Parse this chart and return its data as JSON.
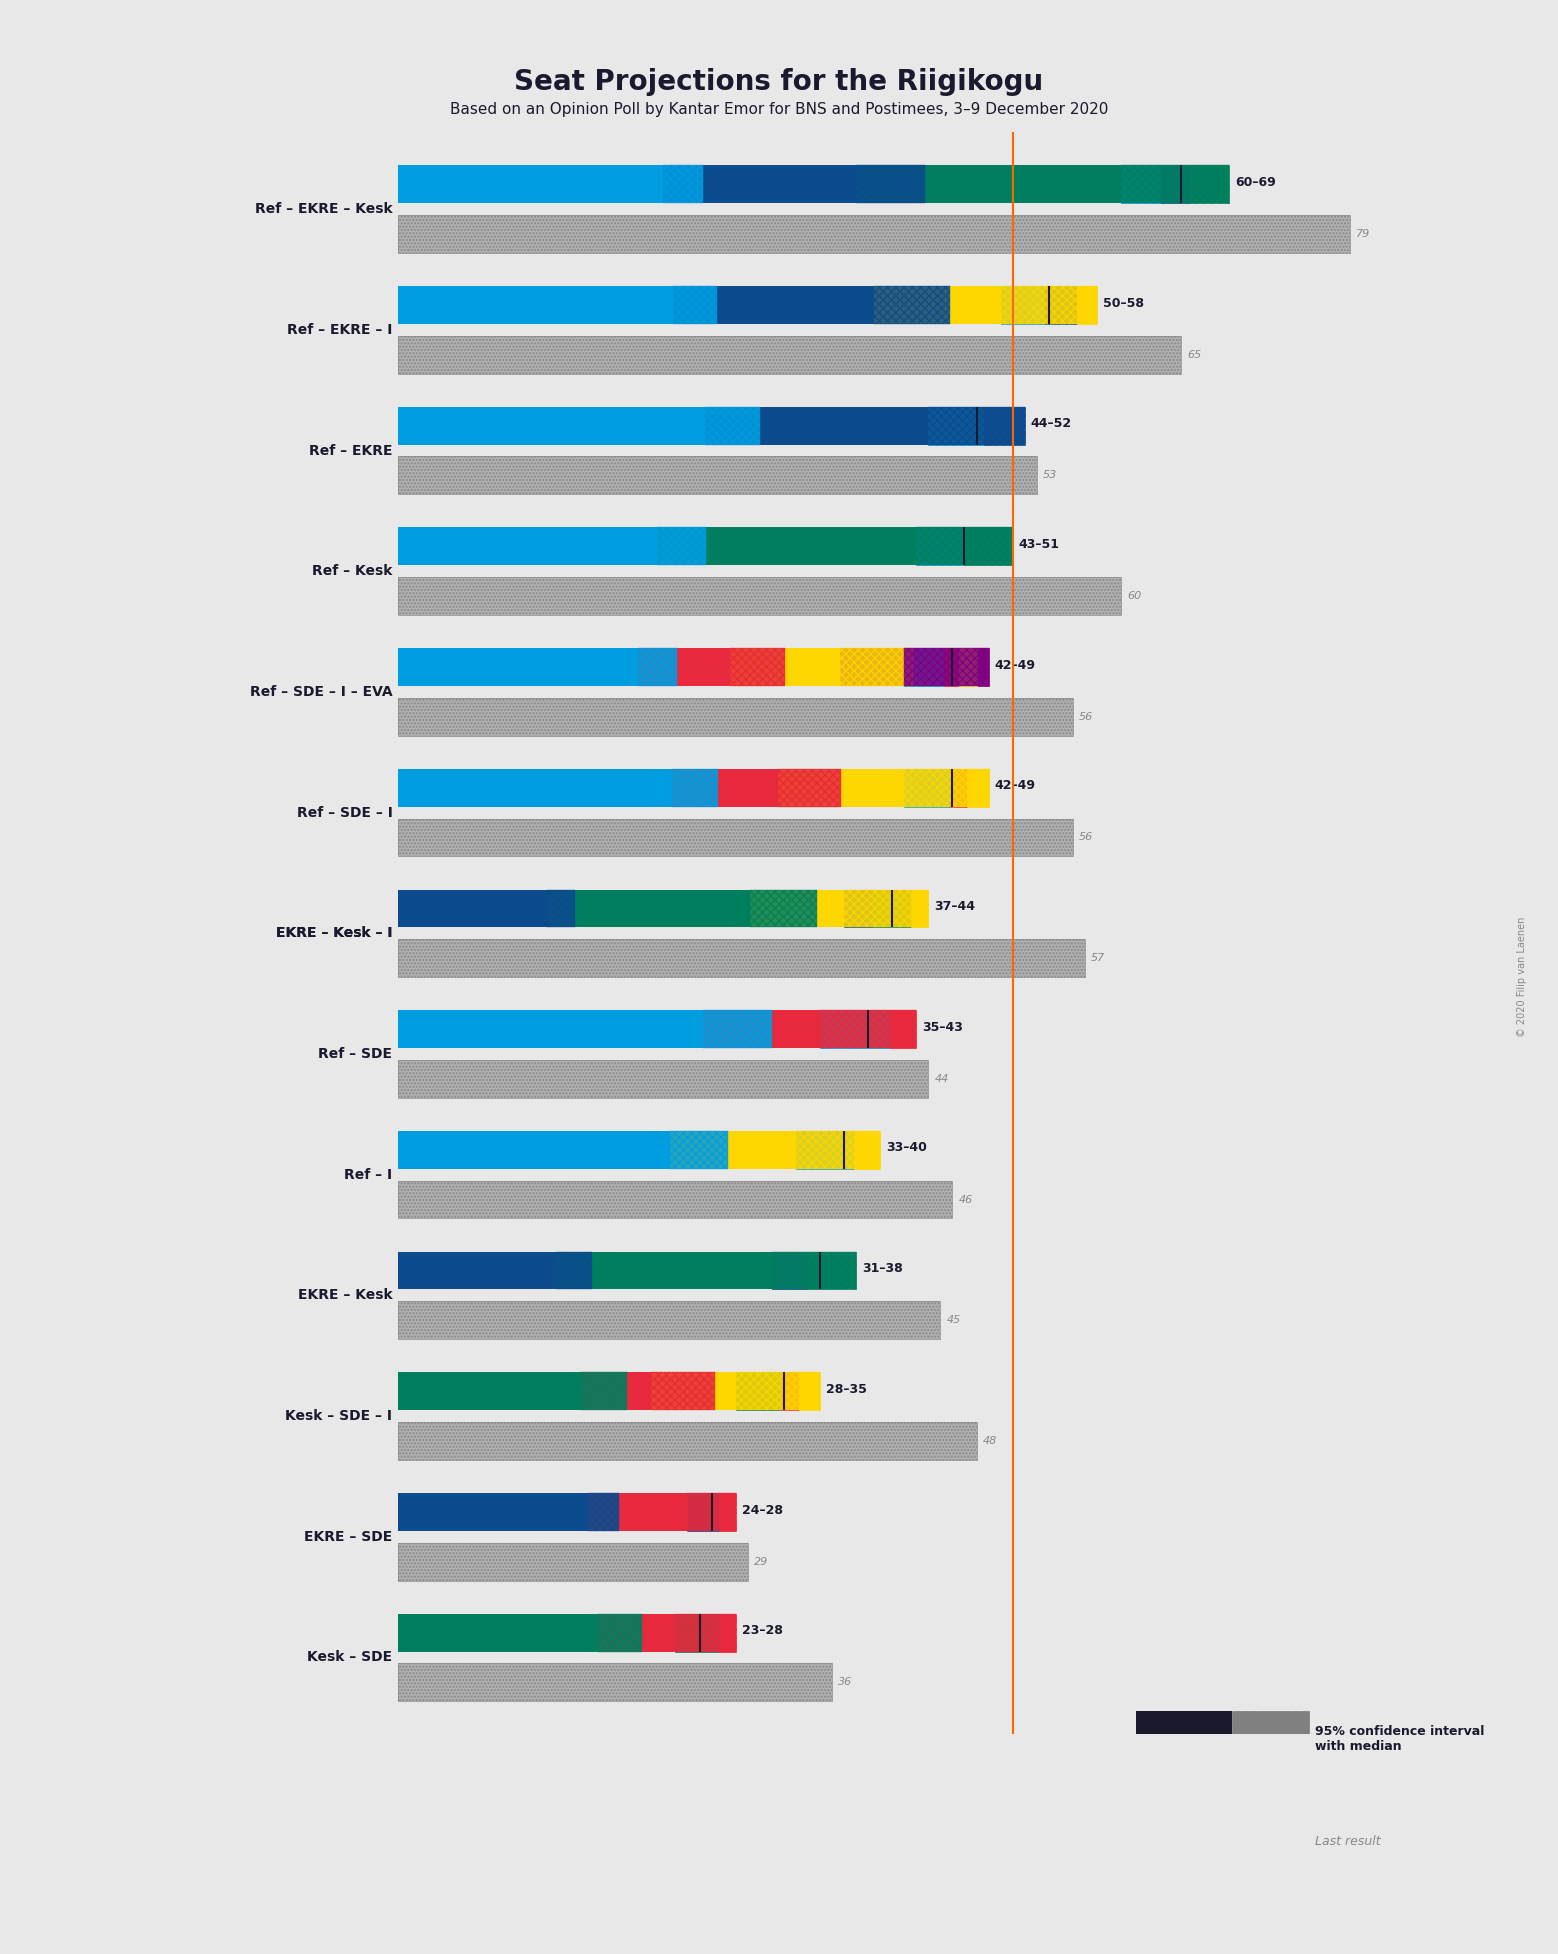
{
  "title": "Seat Projections for the Riigikogu",
  "subtitle": "Based on an Opinion Poll by Kantar Emor for BNS and Postimees, 3–9 December 2020",
  "copyright": "© 2020 Filip van Laenen",
  "majority_line": 51,
  "total_seats": 101,
  "background_color": "#e8e8e8",
  "party_colors": {
    "Ref": "#009DE0",
    "EKRE": "#0B4B8E",
    "Kesk": "#007F5F",
    "I": "#FFD700",
    "SDE": "#E8283C",
    "EVA": "#800080"
  },
  "coalitions": [
    {
      "name": "Ref – EKRE – Kesk",
      "parties": [
        "Ref",
        "EKRE",
        "Kesk"
      ],
      "ci_low": 60,
      "ci_high": 69,
      "median": 65,
      "last_result": 79,
      "underlined": false
    },
    {
      "name": "Ref – EKRE – I",
      "parties": [
        "Ref",
        "EKRE",
        "I"
      ],
      "ci_low": 50,
      "ci_high": 58,
      "median": 54,
      "last_result": 65,
      "underlined": false
    },
    {
      "name": "Ref – EKRE",
      "parties": [
        "Ref",
        "EKRE"
      ],
      "ci_low": 44,
      "ci_high": 52,
      "median": 48,
      "last_result": 53,
      "underlined": false
    },
    {
      "name": "Ref – Kesk",
      "parties": [
        "Ref",
        "Kesk"
      ],
      "ci_low": 43,
      "ci_high": 51,
      "median": 47,
      "last_result": 60,
      "underlined": false
    },
    {
      "name": "Ref – SDE – I – EVA",
      "parties": [
        "Ref",
        "SDE",
        "I",
        "EVA"
      ],
      "ci_low": 42,
      "ci_high": 49,
      "median": 46,
      "last_result": 56,
      "underlined": false
    },
    {
      "name": "Ref – SDE – I",
      "parties": [
        "Ref",
        "SDE",
        "I"
      ],
      "ci_low": 42,
      "ci_high": 49,
      "median": 46,
      "last_result": 56,
      "underlined": false
    },
    {
      "name": "EKRE – Kesk – I",
      "parties": [
        "EKRE",
        "Kesk",
        "I"
      ],
      "ci_low": 37,
      "ci_high": 44,
      "median": 41,
      "last_result": 57,
      "underlined": true
    },
    {
      "name": "Ref – SDE",
      "parties": [
        "Ref",
        "SDE"
      ],
      "ci_low": 35,
      "ci_high": 43,
      "median": 39,
      "last_result": 44,
      "underlined": false
    },
    {
      "name": "Ref – I",
      "parties": [
        "Ref",
        "I"
      ],
      "ci_low": 33,
      "ci_high": 40,
      "median": 37,
      "last_result": 46,
      "underlined": false
    },
    {
      "name": "EKRE – Kesk",
      "parties": [
        "EKRE",
        "Kesk"
      ],
      "ci_low": 31,
      "ci_high": 38,
      "median": 35,
      "last_result": 45,
      "underlined": false
    },
    {
      "name": "Kesk – SDE – I",
      "parties": [
        "Kesk",
        "SDE",
        "I"
      ],
      "ci_low": 28,
      "ci_high": 35,
      "median": 32,
      "last_result": 48,
      "underlined": false
    },
    {
      "name": "EKRE – SDE",
      "parties": [
        "EKRE",
        "SDE"
      ],
      "ci_low": 24,
      "ci_high": 28,
      "median": 26,
      "last_result": 29,
      "underlined": false
    },
    {
      "name": "Kesk – SDE",
      "parties": [
        "Kesk",
        "SDE"
      ],
      "ci_low": 23,
      "ci_high": 28,
      "median": 25,
      "last_result": 36,
      "underlined": false
    }
  ],
  "party_seat_shares": {
    "Ref": 26,
    "EKRE": 19,
    "Kesk": 26,
    "I": 12,
    "SDE": 10,
    "EVA": 7
  },
  "xlim_max": 85
}
